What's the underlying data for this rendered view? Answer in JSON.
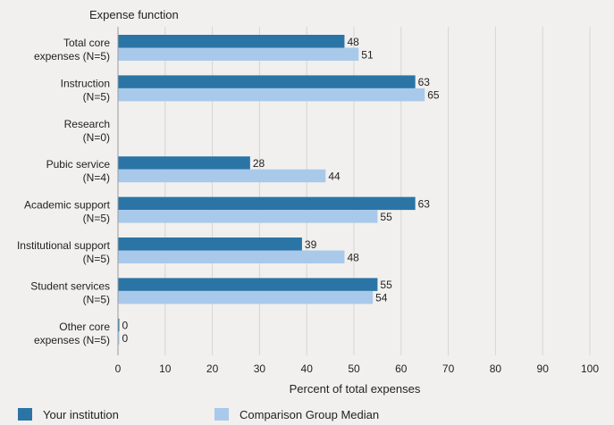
{
  "chart_data": {
    "type": "bar",
    "orientation": "horizontal",
    "category_heading": "Expense function",
    "xlabel": "Percent of total expenses",
    "xlim": [
      0,
      100
    ],
    "xticks": [
      "0",
      "10",
      "20",
      "30",
      "40",
      "50",
      "60",
      "70",
      "80",
      "90",
      "100"
    ],
    "grid": true,
    "legend_position": "bottom",
    "categories": [
      [
        "Total core",
        "expenses (N=5)"
      ],
      [
        "Instruction",
        "(N=5)"
      ],
      [
        "Research",
        "(N=0)"
      ],
      [
        "Pubic service",
        "(N=4)"
      ],
      [
        "Academic support",
        "(N=5)"
      ],
      [
        "Institutional support",
        "(N=5)"
      ],
      [
        "Student services",
        "(N=5)"
      ],
      [
        "Other core",
        "expenses (N=5)"
      ]
    ],
    "series": [
      {
        "name": "Your institution",
        "color": "#2b74a6",
        "values": [
          48,
          63,
          null,
          28,
          63,
          39,
          55,
          0
        ],
        "labels": [
          "48",
          "63",
          "",
          "28",
          "63",
          "39",
          "55",
          "0"
        ]
      },
      {
        "name": "Comparison Group Median",
        "color": "#a9c9ea",
        "values": [
          51,
          65,
          null,
          44,
          55,
          48,
          54,
          0
        ],
        "labels": [
          "51",
          "65",
          "",
          "44",
          "55",
          "48",
          "54",
          "0"
        ]
      }
    ]
  }
}
